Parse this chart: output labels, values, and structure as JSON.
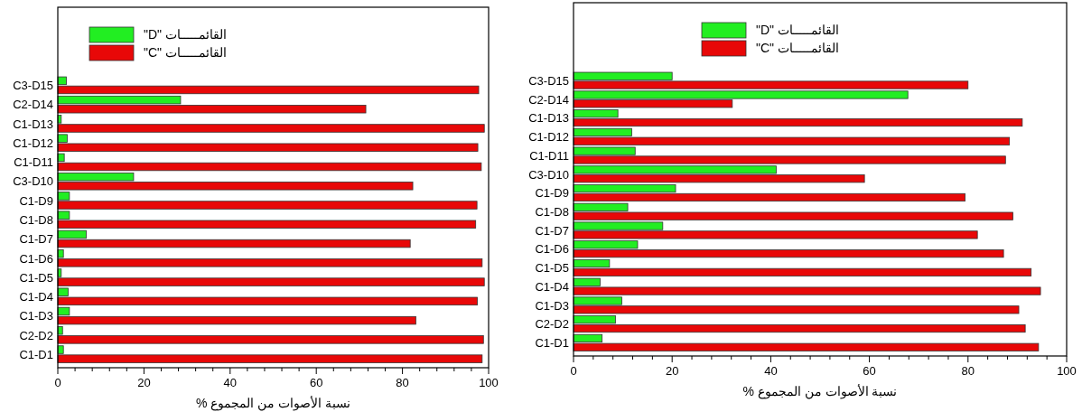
{
  "chart_data": [
    {
      "type": "bar",
      "orientation": "horizontal",
      "xlabel": "نسبة الأصوات من المجموع %",
      "legend": "top left",
      "grid": false,
      "xlim": [
        0,
        100
      ],
      "xticks": [
        0,
        {
          "value": 4,
          "label": null
        },
        {
          "value": 8,
          "label": null
        },
        {
          "value": 12,
          "label": null
        },
        {
          "value": 16,
          "label": null
        },
        20,
        {
          "value": 24,
          "label": null
        },
        {
          "value": 28,
          "label": null
        },
        {
          "value": 32,
          "label": null
        },
        {
          "value": 36,
          "label": null
        },
        40,
        {
          "value": 44,
          "label": null
        },
        {
          "value": 48,
          "label": null
        },
        {
          "value": 52,
          "label": null
        },
        {
          "value": 56,
          "label": null
        },
        60,
        {
          "value": 64,
          "label": null
        },
        {
          "value": 68,
          "label": null
        },
        {
          "value": 72,
          "label": null
        },
        {
          "value": 76,
          "label": null
        },
        80,
        {
          "value": 84,
          "label": null
        },
        {
          "value": 88,
          "label": null
        },
        {
          "value": 92,
          "label": null
        },
        {
          "value": 96,
          "label": null
        },
        100
      ],
      "categories": [
        "C3-D15",
        "C2-D14",
        "C1-D13",
        "C1-D12",
        "C1-D11",
        "C3-D10",
        "C1-D9",
        "C1-D8",
        "C1-D7",
        "C1-D6",
        "C1-D5",
        "C1-D4",
        "C1-D3",
        "C2-D2",
        "C1-D1"
      ],
      "series": [
        {
          "name": "القائمـــــات \"D\"",
          "color": "#22ee22",
          "values": [
            2,
            28.5,
            0.8,
            2.2,
            1.5,
            17.6,
            2.7,
            2.7,
            6.6,
            1.3,
            0.8,
            2.4,
            2.7,
            1.1,
            1.3
          ]
        },
        {
          "name": "القائمـــــات \"C\"",
          "color": "#e80808",
          "values": [
            97.7,
            71.5,
            99,
            97.5,
            98.3,
            82.4,
            97.3,
            97,
            81.8,
            98.5,
            99,
            97.4,
            83.1,
            98.8,
            98.5
          ]
        }
      ]
    },
    {
      "type": "bar",
      "orientation": "horizontal",
      "xlabel": "نسبة الأصوات من المجموع %",
      "legend": "top left",
      "grid": false,
      "xlim": [
        0,
        100
      ],
      "xticks": [
        0,
        {
          "value": 4,
          "label": null
        },
        {
          "value": 8,
          "label": null
        },
        {
          "value": 12,
          "label": null
        },
        {
          "value": 16,
          "label": null
        },
        20,
        {
          "value": 24,
          "label": null
        },
        {
          "value": 28,
          "label": null
        },
        {
          "value": 32,
          "label": null
        },
        {
          "value": 36,
          "label": null
        },
        40,
        {
          "value": 44,
          "label": null
        },
        {
          "value": 48,
          "label": null
        },
        {
          "value": 52,
          "label": null
        },
        {
          "value": 56,
          "label": null
        },
        60,
        {
          "value": 64,
          "label": null
        },
        {
          "value": 68,
          "label": null
        },
        {
          "value": 72,
          "label": null
        },
        {
          "value": 76,
          "label": null
        },
        80,
        {
          "value": 84,
          "label": null
        },
        {
          "value": 88,
          "label": null
        },
        {
          "value": 92,
          "label": null
        },
        {
          "value": 96,
          "label": null
        },
        100
      ],
      "categories": [
        "C3-D15",
        "C2-D14",
        "C1-D13",
        "C1-D12",
        "C1-D11",
        "C3-D10",
        "C1-D9",
        "C1-D8",
        "C1-D7",
        "C1-D6",
        "C1-D5",
        "C1-D4",
        "C1-D3",
        "C2-D2",
        "C1-D1"
      ],
      "series": [
        {
          "name": "القائمـــــات \"D\"",
          "color": "#22ee22",
          "values": [
            20,
            67.8,
            9,
            11.8,
            12.5,
            41.1,
            20.7,
            11,
            18.1,
            13,
            7.3,
            5.4,
            9.8,
            8.5,
            5.8
          ]
        },
        {
          "name": "القائمـــــات \"C\"",
          "color": "#e80808",
          "values": [
            80,
            32.2,
            91,
            88.4,
            87.6,
            59,
            79.4,
            89.1,
            81.9,
            87.2,
            92.8,
            94.7,
            90.3,
            91.6,
            94.3
          ]
        }
      ]
    }
  ]
}
